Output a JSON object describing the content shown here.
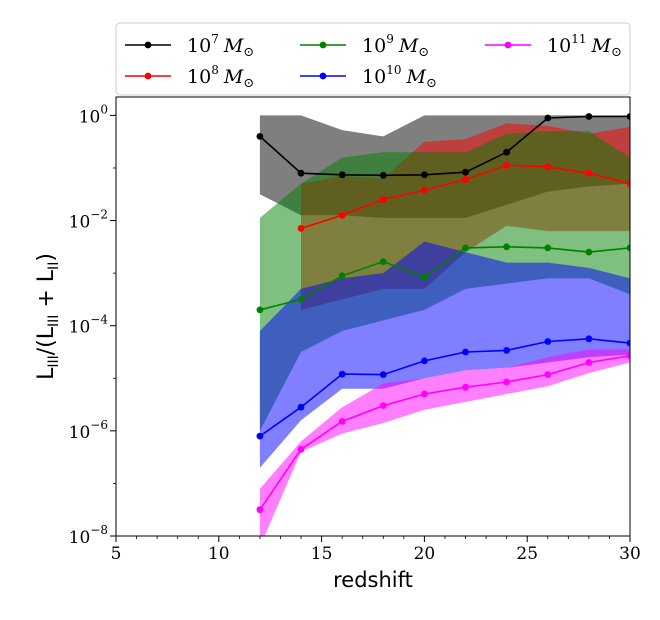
{
  "chart_data": {
    "type": "line",
    "xlabel": "redshift",
    "ylabel": "L_III/(L_III + L_II)",
    "ylabel_parts": {
      "main": "L",
      "sub1": "III",
      "mid": "/(L",
      "sub2": "III",
      "plus": " + L",
      "sub3": "II",
      "end": ")"
    },
    "xlim": [
      5,
      30
    ],
    "ylim_log10": [
      -8,
      0.35
    ],
    "y_scale": "log",
    "grid": false,
    "legend_position": "top",
    "x_ticks": [
      5,
      10,
      15,
      20,
      25,
      30
    ],
    "x_tick_labels": [
      "5",
      "10",
      "15",
      "20",
      "25",
      "30"
    ],
    "y_ticks_log10": [
      0,
      -2,
      -4,
      -6,
      -8
    ],
    "y_tick_labels": [
      {
        "base": "10",
        "exp": "0"
      },
      {
        "base": "10",
        "exp": "−2"
      },
      {
        "base": "10",
        "exp": "−4"
      },
      {
        "base": "10",
        "exp": "−6"
      },
      {
        "base": "10",
        "exp": "−8"
      }
    ],
    "series": [
      {
        "name": "10^7 M_sun",
        "legend": {
          "base": "10",
          "exp": "7",
          "unit": "M"
        },
        "color": "#000000",
        "band_color": "#000000",
        "band_opacity": 0.5,
        "x": [
          12,
          14,
          16,
          18,
          20,
          22,
          24,
          26,
          28,
          30
        ],
        "y_log10": [
          -0.4,
          -1.1,
          -1.13,
          -1.14,
          -1.13,
          -1.08,
          -0.7,
          -0.05,
          -0.02,
          -0.02
        ],
        "band_x": [
          12,
          14,
          16,
          18,
          20,
          22,
          24,
          26,
          28,
          30
        ],
        "band_upper_log10": [
          0,
          0,
          -0.28,
          -0.4,
          0,
          0,
          0,
          0,
          0,
          0
        ],
        "band_lower_log10": [
          -1.5,
          -1.9,
          -1.9,
          -1.95,
          -1.95,
          -1.95,
          -1.7,
          -1.45,
          -1.35,
          -1.3
        ]
      },
      {
        "name": "10^8 M_sun",
        "legend": {
          "base": "10",
          "exp": "8",
          "unit": "M"
        },
        "color": "#ff0000",
        "band_color": "#ff0000",
        "band_opacity": 0.5,
        "x": [
          14,
          16,
          18,
          20,
          22,
          24,
          26,
          28,
          30
        ],
        "y_log10": [
          -2.15,
          -1.9,
          -1.6,
          -1.42,
          -1.22,
          -0.95,
          -0.98,
          -1.1,
          -1.3
        ],
        "band_x": [
          14,
          16,
          18,
          20,
          22,
          24,
          26,
          28,
          30
        ],
        "band_upper_log10": [
          -1.3,
          -1.15,
          -1.2,
          -0.5,
          -0.45,
          -0.15,
          -0.2,
          -0.35,
          -0.22
        ],
        "band_lower_log10": [
          -3.7,
          -3.5,
          -3.3,
          -3.3,
          -2.6,
          -2.1,
          -2.2,
          -2.2,
          -2.2
        ]
      },
      {
        "name": "10^9 M_sun",
        "legend": {
          "base": "10",
          "exp": "9",
          "unit": "M"
        },
        "color": "#008000",
        "band_color": "#008000",
        "band_opacity": 0.5,
        "x": [
          12,
          14,
          16,
          18,
          20,
          22,
          24,
          26,
          28,
          30
        ],
        "y_log10": [
          -3.7,
          -3.5,
          -3.05,
          -2.78,
          -3.08,
          -2.52,
          -2.5,
          -2.52,
          -2.6,
          -2.52
        ],
        "band_x": [
          12,
          14,
          16,
          18,
          20,
          22,
          24,
          26,
          28,
          30
        ],
        "band_upper_log10": [
          -1.95,
          -1.3,
          -0.8,
          -0.7,
          -0.7,
          -0.7,
          -0.35,
          -0.3,
          -0.3,
          -0.8
        ],
        "band_lower_log10": [
          -6.0,
          -4.5,
          -4.1,
          -3.9,
          -3.7,
          -3.3,
          -3.2,
          -3.1,
          -3.1,
          -3.4
        ]
      },
      {
        "name": "10^10 M_sun",
        "legend": {
          "base": "10",
          "exp": "10",
          "unit": "M"
        },
        "color": "#0000ff",
        "band_color": "#0000ff",
        "band_opacity": 0.5,
        "x": [
          12,
          14,
          16,
          18,
          20,
          22,
          24,
          26,
          28,
          30
        ],
        "y_log10": [
          -6.1,
          -5.55,
          -4.92,
          -4.93,
          -4.67,
          -4.5,
          -4.47,
          -4.3,
          -4.25,
          -4.33
        ],
        "band_x": [
          12,
          14,
          16,
          18,
          20,
          22,
          24,
          26,
          28,
          30
        ],
        "band_upper_log10": [
          -4.1,
          -3.3,
          -3.1,
          -3.0,
          -2.4,
          -2.6,
          -2.8,
          -2.8,
          -2.9,
          -3.1
        ],
        "band_lower_log10": [
          -6.7,
          -5.8,
          -5.2,
          -5.2,
          -5.0,
          -4.85,
          -4.8,
          -4.7,
          -4.6,
          -4.55
        ]
      },
      {
        "name": "10^11 M_sun",
        "legend": {
          "base": "10",
          "exp": "11",
          "unit": "M"
        },
        "color": "#ff00ff",
        "band_color": "#ff00ff",
        "band_opacity": 0.5,
        "x": [
          12,
          14,
          16,
          18,
          20,
          22,
          24,
          26,
          28,
          30
        ],
        "y_log10": [
          -7.5,
          -6.35,
          -5.82,
          -5.52,
          -5.3,
          -5.17,
          -5.07,
          -4.93,
          -4.7,
          -4.57
        ],
        "band_x": [
          12,
          14,
          16,
          18,
          20,
          22,
          24,
          26,
          28,
          30
        ],
        "band_upper_log10": [
          -7.1,
          -6.2,
          -5.55,
          -5.1,
          -5.0,
          -4.85,
          -4.8,
          -4.6,
          -4.45,
          -4.45
        ],
        "band_lower_log10": [
          -8.2,
          -6.4,
          -6.05,
          -5.85,
          -5.6,
          -5.45,
          -5.3,
          -5.15,
          -4.9,
          -4.7
        ]
      }
    ]
  }
}
